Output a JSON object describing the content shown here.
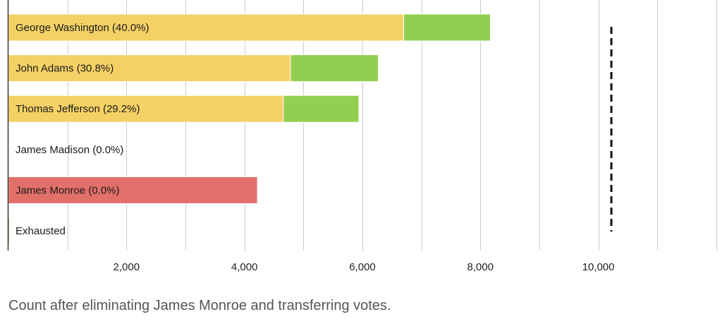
{
  "caption": "Count after eliminating James Monroe and transferring votes.",
  "colors": {
    "retained": "#f5d165",
    "transferred_in": "#92cf50",
    "eliminated": "#e2706a",
    "gridline": "#cccccc",
    "axis": "#333333",
    "threshold": "#111111"
  },
  "chart_data": {
    "type": "bar",
    "orientation": "horizontal",
    "stacked": true,
    "categories": [
      "George Washington (40.0%)",
      "John Adams (30.8%)",
      "Thomas Jefferson (29.2%)",
      "James Madison (0.0%)",
      "James Monroe (0.0%)",
      "Exhausted"
    ],
    "series": [
      {
        "key": "retained",
        "values": [
          6700,
          4780,
          4660,
          0,
          0,
          0
        ]
      },
      {
        "key": "transferred_in",
        "values": [
          1470,
          1490,
          1280,
          0,
          0,
          10
        ]
      },
      {
        "key": "eliminated",
        "values": [
          0,
          0,
          0,
          0,
          4220,
          0
        ]
      }
    ],
    "xlim": [
      0,
      12000
    ],
    "xticks": [
      2000,
      4000,
      6000,
      8000,
      10000
    ],
    "xtick_labels": [
      "2,000",
      "4,000",
      "6,000",
      "8,000",
      "10,000"
    ],
    "gridlines": [
      1000,
      2000,
      3000,
      4000,
      5000,
      6000,
      7000,
      8000,
      9000,
      10000,
      11000,
      12000
    ],
    "threshold": 10220,
    "grid": true,
    "legend": "none"
  }
}
